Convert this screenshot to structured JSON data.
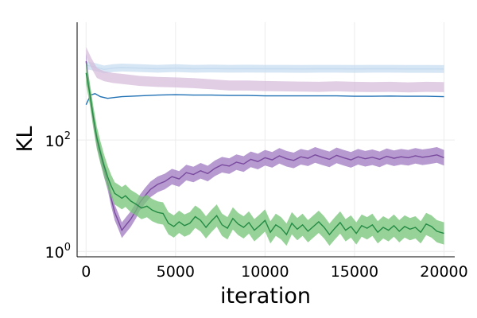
{
  "chart_data": {
    "type": "line",
    "title": "",
    "xlabel": "iteration",
    "ylabel": "KL",
    "x_ticks": [
      0,
      5000,
      10000,
      15000,
      20000
    ],
    "x_tick_labels": [
      "0",
      "5000",
      "10000",
      "15000",
      "20000"
    ],
    "y_ticks": [
      1,
      100
    ],
    "y_tick_labels": [
      {
        "base": "10",
        "exp": "0"
      },
      {
        "base": "10",
        "exp": "2"
      }
    ],
    "xlim": [
      -500,
      20600
    ],
    "ylim": [
      0.8,
      13000
    ],
    "yscale": "log",
    "grid": true,
    "legend": "none",
    "series": [
      {
        "color": "#c6dbef",
        "band": 0.07,
        "x": [
          0,
          500,
          1000,
          1500,
          2000,
          3000,
          4000,
          5000,
          6000,
          7000,
          8000,
          9000,
          10000,
          11000,
          12000,
          13000,
          14000,
          15000,
          16000,
          17000,
          18000,
          19000,
          20000
        ],
        "y": [
          2200,
          2050,
          1850,
          1950,
          2000,
          1950,
          1900,
          1950,
          1900,
          1920,
          1900,
          1910,
          1900,
          1900,
          1890,
          1900,
          1900,
          1890,
          1900,
          1900,
          1890,
          1890,
          1880
        ]
      },
      {
        "color": "#d4b9da",
        "band": 0.09,
        "x": [
          0,
          300,
          600,
          1000,
          1500,
          2000,
          3000,
          4000,
          5000,
          6000,
          7000,
          8000,
          9000,
          10000,
          11000,
          12000,
          13000,
          14000,
          15000,
          16000,
          17000,
          18000,
          19000,
          20000
        ],
        "y": [
          3800,
          2400,
          1600,
          1400,
          1300,
          1250,
          1150,
          1100,
          1080,
          1050,
          1000,
          950,
          950,
          930,
          920,
          910,
          900,
          920,
          900,
          890,
          900,
          880,
          900,
          890
        ],
        "band_series": true
      },
      {
        "color": "#2171b5",
        "band": 0,
        "x": [
          0,
          250,
          500,
          800,
          1200,
          1600,
          2000,
          3000,
          4000,
          5000,
          6000,
          7000,
          8000,
          9000,
          10000,
          11000,
          12000,
          13000,
          14000,
          15000,
          16000,
          17000,
          18000,
          19000,
          20000
        ],
        "y": [
          430,
          640,
          680,
          600,
          560,
          580,
          600,
          620,
          640,
          650,
          640,
          640,
          630,
          630,
          620,
          620,
          620,
          620,
          620,
          610,
          610,
          615,
          610,
          610,
          600
        ]
      },
      {
        "color": "#7a4a9e",
        "bandColor": "#9e78c0",
        "band": 0.14,
        "x": [
          0,
          200,
          400,
          600,
          800,
          1000,
          1200,
          1400,
          1600,
          1800,
          2000,
          2200,
          2500,
          2800,
          3000,
          3300,
          3600,
          4000,
          4400,
          4800,
          5200,
          5600,
          6000,
          6400,
          6800,
          7200,
          7600,
          8000,
          8400,
          8800,
          9200,
          9600,
          10000,
          10400,
          10800,
          11200,
          11600,
          12000,
          12400,
          12800,
          13200,
          13600,
          14000,
          14400,
          14800,
          15200,
          15600,
          16000,
          16400,
          16800,
          17200,
          17600,
          18000,
          18400,
          18800,
          19200,
          19600,
          20000
        ],
        "y": [
          2600,
          700,
          250,
          100,
          55,
          30,
          18,
          9,
          5,
          3.5,
          2.4,
          2.9,
          3.8,
          5.5,
          7.5,
          10,
          13,
          16,
          18,
          22,
          20,
          26,
          24,
          28,
          25,
          31,
          36,
          34,
          40,
          37,
          45,
          41,
          48,
          44,
          52,
          46,
          43,
          50,
          47,
          54,
          49,
          45,
          53,
          48,
          44,
          50,
          46,
          49,
          45,
          51,
          47,
          50,
          48,
          52,
          49,
          51,
          54,
          48
        ]
      },
      {
        "color": "#238b45",
        "bandColor": "#74c476",
        "band": 0.2,
        "x": [
          0,
          200,
          400,
          600,
          800,
          1000,
          1200,
          1400,
          1600,
          1800,
          2000,
          2200,
          2500,
          2800,
          3100,
          3400,
          3700,
          4000,
          4300,
          4600,
          4900,
          5200,
          5500,
          5800,
          6100,
          6400,
          6700,
          7000,
          7300,
          7600,
          7900,
          8200,
          8500,
          8800,
          9100,
          9400,
          9700,
          10000,
          10300,
          10600,
          10900,
          11200,
          11500,
          11800,
          12100,
          12400,
          12700,
          13000,
          13300,
          13600,
          13900,
          14200,
          14500,
          14800,
          15100,
          15400,
          15700,
          16000,
          16300,
          16600,
          16900,
          17200,
          17500,
          17800,
          18100,
          18400,
          18700,
          19000,
          19300,
          19600,
          20000
        ],
        "y": [
          1600,
          700,
          260,
          110,
          60,
          35,
          22,
          15,
          11,
          10,
          9,
          10,
          8,
          7,
          6,
          6.5,
          5.5,
          5,
          4.8,
          3.2,
          2.8,
          3.4,
          2.9,
          3.2,
          4.2,
          3.6,
          2.7,
          3.5,
          4.4,
          3.0,
          2.6,
          3.9,
          3.1,
          2.7,
          3.3,
          2.4,
          2.9,
          3.6,
          2.2,
          3.0,
          2.6,
          2.0,
          3.2,
          2.5,
          3.0,
          2.3,
          2.8,
          3.4,
          2.7,
          2.0,
          2.6,
          3.3,
          2.4,
          2.8,
          2.1,
          2.9,
          2.6,
          3.0,
          2.2,
          2.7,
          2.4,
          2.9,
          2.3,
          2.8,
          2.5,
          2.7,
          2.2,
          3.1,
          2.8,
          2.3,
          2.1
        ]
      }
    ]
  }
}
